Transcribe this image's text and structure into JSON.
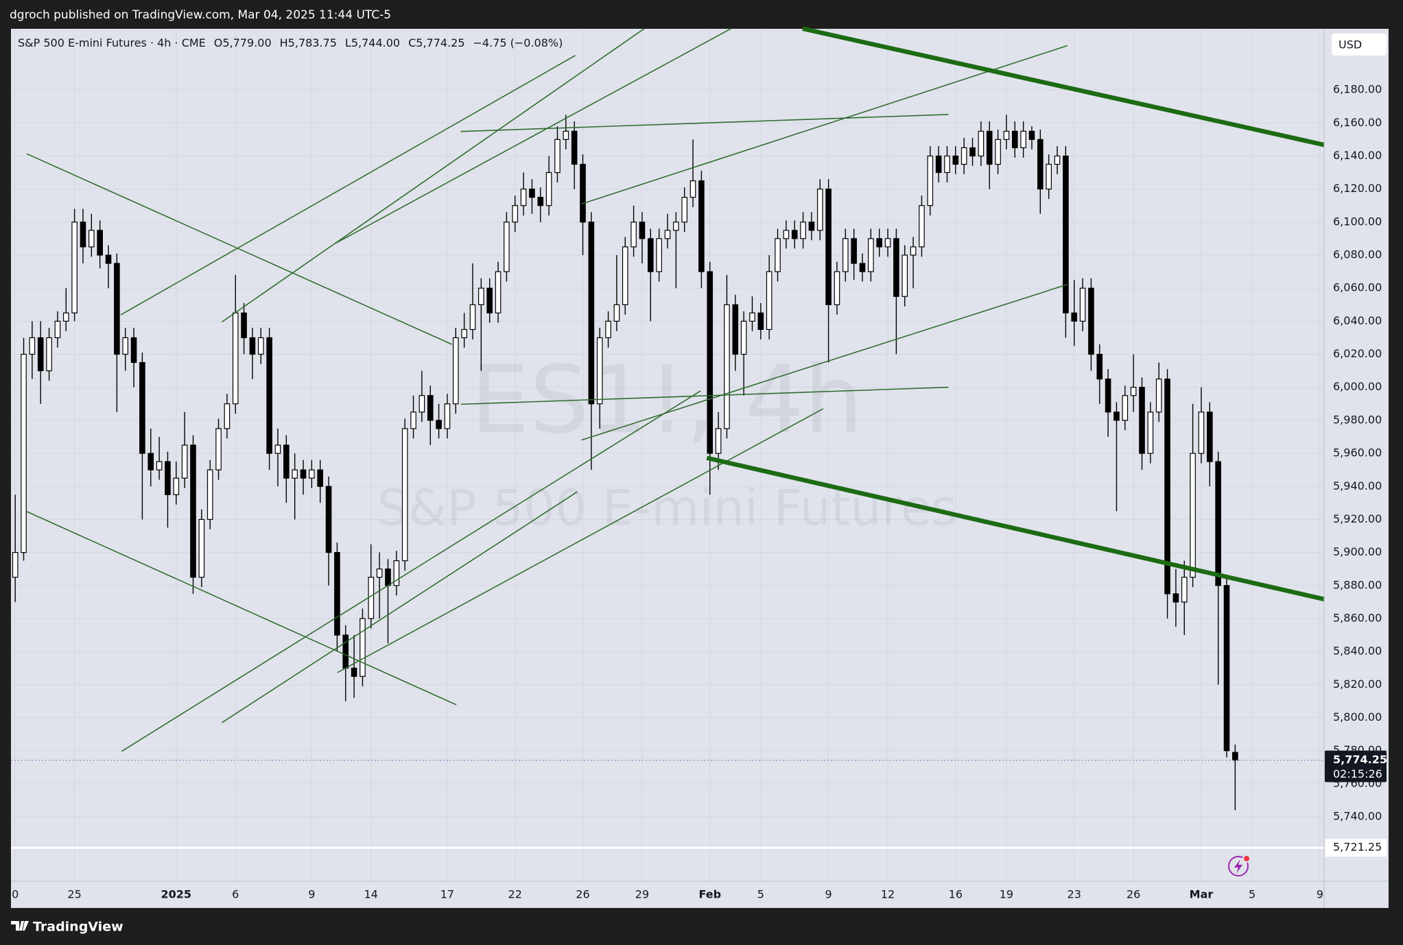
{
  "header": {
    "publisher": "dgroch published on TradingView.com, Mar 04, 2025 11:44 UTC-5",
    "symbol_line": "S&P 500 E-mini Futures · 4h · CME",
    "ohlc": [
      {
        "key": "O",
        "value": "5,779.00"
      },
      {
        "key": "H",
        "value": "5,783.75"
      },
      {
        "key": "L",
        "value": "5,744.00"
      },
      {
        "key": "C",
        "value": "5,774.25"
      }
    ],
    "change": "−4.75 (−0.08%)"
  },
  "currency": "USD",
  "watermark": {
    "symbol": "ES1!, 4h",
    "name": "S&P 500 E-mini Futures"
  },
  "footer": {
    "brand": "TradingView"
  },
  "chart_data": {
    "type": "candlestick",
    "categories": [
      "0",
      null,
      null,
      null,
      null,
      null,
      null,
      "25",
      null,
      null,
      null,
      null,
      null,
      null,
      null,
      null,
      null,
      null,
      null,
      "2025",
      null,
      null,
      null,
      null,
      null,
      null,
      "6",
      null,
      null,
      null,
      null,
      null,
      null,
      null,
      null,
      "9",
      null,
      null,
      null,
      null,
      null,
      null,
      "14",
      null,
      null,
      null,
      null,
      null,
      null,
      null,
      null,
      "17",
      null,
      null,
      null,
      null,
      null,
      null,
      null,
      "22",
      null,
      null,
      null,
      null,
      null,
      null,
      null,
      "26",
      null,
      null,
      null,
      null,
      null,
      null,
      "29",
      null,
      null,
      null,
      null,
      null,
      null,
      null,
      "Feb",
      null,
      null,
      null,
      null,
      null,
      "5",
      null,
      null,
      null,
      null,
      null,
      null,
      null,
      "9",
      null,
      null,
      null,
      null,
      null,
      null,
      "12",
      null,
      null,
      null,
      null,
      null,
      null,
      null,
      "16",
      null,
      null,
      null,
      null,
      null,
      "19",
      null,
      null,
      null,
      null,
      null,
      null,
      null,
      "23",
      null,
      null,
      null,
      null,
      null,
      null,
      "26",
      null,
      null,
      null,
      null,
      null,
      null,
      null,
      "Mar",
      null,
      null,
      null,
      null,
      null,
      "5",
      null,
      null,
      null,
      null,
      null,
      null,
      null,
      "9"
    ],
    "open": [
      5885,
      5900,
      6020,
      6030,
      6010,
      6030,
      6040,
      6045,
      6100,
      6085,
      6095,
      6080,
      6075,
      6020,
      6030,
      6015,
      5960,
      5950,
      5955,
      5935,
      5945,
      5965,
      5885,
      5920,
      5950,
      5975,
      5990,
      6045,
      6030,
      6020,
      6030,
      5960,
      5965,
      5945,
      5950,
      5945,
      5950,
      5940,
      5900,
      5850,
      5830,
      5825,
      5860,
      5885,
      5890,
      5880,
      5895,
      5975,
      5985,
      5995,
      5980,
      5975,
      5990,
      6030,
      6035,
      6050,
      6060,
      6045,
      6070,
      6100,
      6110,
      6120,
      6115,
      6110,
      6130,
      6150,
      6155,
      6135,
      6100,
      5990,
      6030,
      6040,
      6050,
      6085,
      6100,
      6090,
      6070,
      6090,
      6095,
      6100,
      6115,
      6125,
      6070,
      5960,
      5975,
      6050,
      6020,
      6040,
      6045,
      6035,
      6070,
      6090,
      6095,
      6090,
      6100,
      6095,
      6120,
      6050,
      6070,
      6090,
      6075,
      6070,
      6090,
      6085,
      6090,
      6055,
      6080,
      6085,
      6110,
      6140,
      6130,
      6140,
      6135,
      6145,
      6140,
      6155,
      6135,
      6150,
      6155,
      6145,
      6155,
      6150,
      6120,
      6135,
      6140,
      6045,
      6040,
      6060,
      6020,
      6005,
      5985,
      5980,
      5995,
      6000,
      5960,
      5985,
      6005,
      5875,
      5870,
      5885,
      5960,
      5985,
      5955,
      5880,
      5779,
      null,
      null,
      null,
      null,
      null,
      null,
      null,
      null,
      null,
      null
    ],
    "high": [
      5935,
      6030,
      6040,
      6040,
      6036,
      6046,
      6060,
      6108,
      6108,
      6105,
      6101,
      6086,
      6081,
      6036,
      6036,
      6021,
      5975,
      5970,
      5961,
      5955,
      5985,
      5971,
      5926,
      5956,
      5981,
      5996,
      6068,
      6051,
      6036,
      6036,
      6036,
      5975,
      5971,
      5960,
      5956,
      5956,
      5956,
      5946,
      5906,
      5856,
      5850,
      5866,
      5905,
      5900,
      5896,
      5901,
      5981,
      5995,
      6010,
      6001,
      5990,
      5996,
      6036,
      6045,
      6075,
      6066,
      6066,
      6076,
      6106,
      6116,
      6130,
      6126,
      6121,
      6140,
      6158,
      6165,
      6161,
      6141,
      6106,
      6036,
      6046,
      6080,
      6091,
      6110,
      6106,
      6096,
      6096,
      6105,
      6106,
      6121,
      6150,
      6131,
      6076,
      5985,
      6068,
      6056,
      6046,
      6055,
      6051,
      6080,
      6096,
      6101,
      6101,
      6106,
      6106,
      6126,
      6126,
      6076,
      6096,
      6096,
      6081,
      6096,
      6096,
      6096,
      6096,
      6086,
      6091,
      6116,
      6146,
      6146,
      6146,
      6146,
      6151,
      6151,
      6161,
      6161,
      6156,
      6165,
      6161,
      6161,
      6158,
      6156,
      6141,
      6146,
      6146,
      6065,
      6066,
      6066,
      6026,
      6011,
      5991,
      6001,
      6020,
      6006,
      5991,
      6015,
      6011,
      5890,
      5895,
      5990,
      6000,
      5991,
      5961,
      5886,
      5783.75,
      null,
      null,
      null,
      null,
      null,
      null,
      null,
      null,
      null,
      null
    ],
    "low": [
      5870,
      5895,
      6005,
      5990,
      6004,
      6024,
      6034,
      6040,
      6075,
      6079,
      6072,
      6060,
      5985,
      6010,
      6000,
      5920,
      5940,
      5944,
      5915,
      5929,
      5939,
      5875,
      5879,
      5914,
      5944,
      5969,
      5984,
      6020,
      6005,
      6014,
      5950,
      5940,
      5930,
      5920,
      5935,
      5939,
      5930,
      5880,
      5840,
      5810,
      5812,
      5819,
      5854,
      5860,
      5845,
      5874,
      5889,
      5969,
      5979,
      5965,
      5969,
      5969,
      5984,
      6024,
      6029,
      6010,
      6039,
      6039,
      6064,
      6094,
      6104,
      6105,
      6100,
      6104,
      6124,
      6144,
      6120,
      6080,
      5950,
      5975,
      6024,
      6034,
      6044,
      6079,
      6075,
      6040,
      6064,
      6084,
      6060,
      6094,
      6109,
      6060,
      5935,
      5950,
      5969,
      6010,
      5995,
      6034,
      6029,
      6029,
      6064,
      6084,
      6084,
      6084,
      6089,
      6089,
      6015,
      6044,
      6064,
      6065,
      6064,
      6064,
      6079,
      6079,
      6020,
      6049,
      6060,
      6079,
      6104,
      6124,
      6124,
      6129,
      6129,
      6134,
      6134,
      6120,
      6129,
      6144,
      6139,
      6139,
      6144,
      6105,
      6114,
      6129,
      6030,
      6025,
      6034,
      6010,
      5990,
      5970,
      5925,
      5974,
      5985,
      5950,
      5954,
      5979,
      5860,
      5855,
      5850,
      5879,
      5954,
      5940,
      5820,
      5776,
      5744,
      null,
      null,
      null,
      null,
      null,
      null,
      null,
      null,
      null,
      null
    ],
    "close": [
      5900,
      6020,
      6030,
      6010,
      6030,
      6040,
      6045,
      6100,
      6085,
      6095,
      6080,
      6075,
      6020,
      6030,
      6015,
      5960,
      5950,
      5955,
      5935,
      5945,
      5965,
      5885,
      5920,
      5950,
      5975,
      5990,
      6045,
      6030,
      6020,
      6030,
      5960,
      5965,
      5945,
      5950,
      5945,
      5950,
      5940,
      5900,
      5850,
      5830,
      5825,
      5860,
      5885,
      5890,
      5880,
      5895,
      5975,
      5985,
      5995,
      5980,
      5975,
      5990,
      6030,
      6035,
      6050,
      6060,
      6045,
      6070,
      6100,
      6110,
      6120,
      6115,
      6110,
      6130,
      6150,
      6155,
      6135,
      6100,
      5990,
      6030,
      6040,
      6050,
      6085,
      6100,
      6090,
      6070,
      6090,
      6095,
      6100,
      6115,
      6125,
      6070,
      5960,
      5975,
      6050,
      6020,
      6040,
      6045,
      6035,
      6070,
      6090,
      6095,
      6090,
      6100,
      6095,
      6120,
      6050,
      6070,
      6090,
      6075,
      6070,
      6090,
      6085,
      6090,
      6055,
      6080,
      6085,
      6110,
      6140,
      6130,
      6140,
      6135,
      6145,
      6140,
      6155,
      6135,
      6150,
      6155,
      6145,
      6155,
      6150,
      6120,
      6135,
      6140,
      6045,
      6040,
      6060,
      6020,
      6005,
      5985,
      5980,
      5995,
      6000,
      5960,
      5985,
      6005,
      5875,
      5870,
      5885,
      5960,
      5985,
      5955,
      5880,
      5780,
      5774.25,
      null,
      null,
      null,
      null,
      null,
      null,
      null,
      null,
      null,
      null
    ],
    "up_color": "#ffffff",
    "down_color": "#000000",
    "wick_color": "#000000",
    "ylim": [
      5701,
      6217
    ],
    "yticks": [
      {
        "value": 5740,
        "label": "5,740.00"
      },
      {
        "value": 5760,
        "label": "5,760.00"
      },
      {
        "value": 5780,
        "label": "5,780.00"
      },
      {
        "value": 5800,
        "label": "5,800.00"
      },
      {
        "value": 5820,
        "label": "5,820.00"
      },
      {
        "value": 5840,
        "label": "5,840.00"
      },
      {
        "value": 5860,
        "label": "5,860.00"
      },
      {
        "value": 5880,
        "label": "5,880.00"
      },
      {
        "value": 5900,
        "label": "5,900.00"
      },
      {
        "value": 5920,
        "label": "5,920.00"
      },
      {
        "value": 5940,
        "label": "5,940.00"
      },
      {
        "value": 5960,
        "label": "5,960.00"
      },
      {
        "value": 5980,
        "label": "5,980.00"
      },
      {
        "value": 6000,
        "label": "6,000.00"
      },
      {
        "value": 6020,
        "label": "6,020.00"
      },
      {
        "value": 6040,
        "label": "6,040.00"
      },
      {
        "value": 6060,
        "label": "6,060.00"
      },
      {
        "value": 6080,
        "label": "6,080.00"
      },
      {
        "value": 6100,
        "label": "6,100.00"
      },
      {
        "value": 6120,
        "label": "6,120.00"
      },
      {
        "value": 6140,
        "label": "6,140.00"
      },
      {
        "value": 6160,
        "label": "6,160.00"
      },
      {
        "value": 6180,
        "label": "6,180.00"
      }
    ],
    "grid": true,
    "hline": {
      "value": 5721.25,
      "label": "5,721.25",
      "color": "#ffffff"
    },
    "price_line": {
      "value": 5774.25,
      "label": "5,774.25",
      "countdown": "02:15:26",
      "color": "#8e7cc3"
    }
  }
}
